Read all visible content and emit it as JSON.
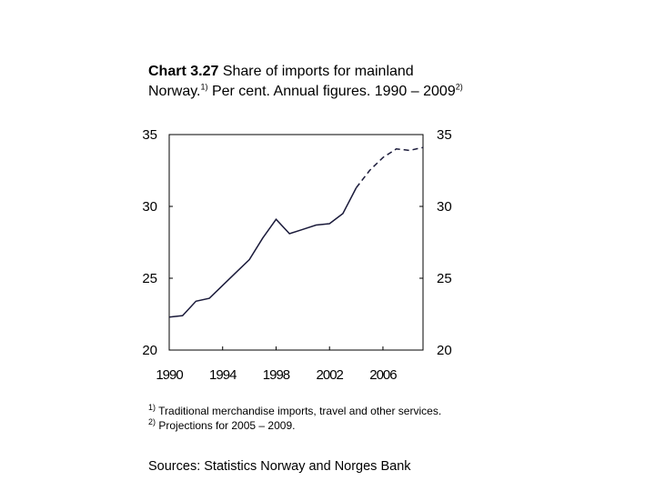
{
  "title": {
    "number": "Chart 3.27",
    "text1": " Share of imports for mainland Norway.",
    "sup1": "1)",
    "text2": " Per cent. Annual figures. 1990 – 2009",
    "sup2": "2)"
  },
  "chart_data": {
    "type": "line",
    "yticks_left": [
      "35",
      "30",
      "25",
      "20"
    ],
    "yticks_right": [
      "35",
      "30",
      "25",
      "20"
    ],
    "ylim": [
      20,
      35
    ],
    "xlim": [
      1990,
      2009
    ],
    "xticks": [
      "1990",
      "1994",
      "1998",
      "2002",
      "2006"
    ],
    "grid": false,
    "series": [
      {
        "style": "solid",
        "x": [
          1990,
          1991,
          1992,
          1993,
          1994,
          1995,
          1996,
          1997,
          1998,
          1999,
          2000,
          2001,
          2002,
          2003,
          2004
        ],
        "y": [
          22.3,
          22.4,
          23.4,
          23.6,
          24.5,
          25.4,
          26.3,
          27.8,
          29.1,
          28.1,
          28.4,
          28.7,
          28.8,
          29.5,
          31.3
        ]
      },
      {
        "style": "dashed",
        "x": [
          2004,
          2005,
          2006,
          2007,
          2008,
          2009
        ],
        "y": [
          31.3,
          32.5,
          33.4,
          34.0,
          33.9,
          34.1
        ]
      }
    ]
  },
  "footnotes": {
    "f1_marker": "1)",
    "f1_text": " Traditional merchandise imports, travel and other services.",
    "f2_marker": "2)",
    "f2_text": " Projections for 2005 – 2009."
  },
  "source": "Sources: Statistics Norway and Norges Bank"
}
